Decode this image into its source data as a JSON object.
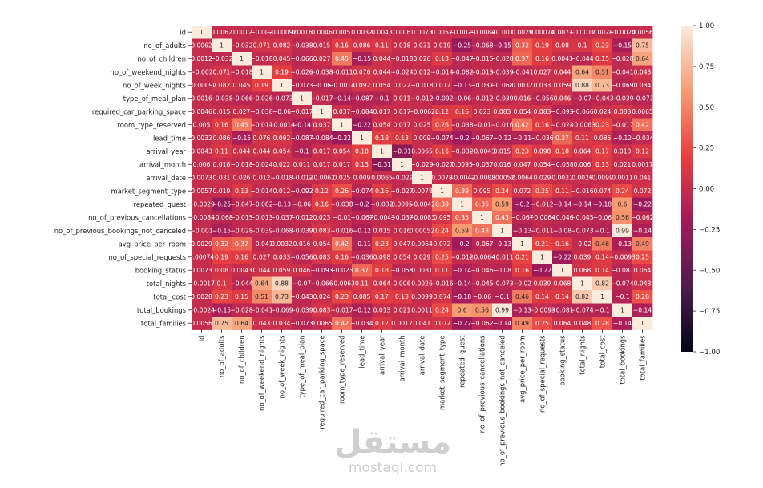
{
  "chart_data": {
    "type": "heatmap",
    "labels": [
      "id",
      "no_of_adults",
      "no_of_children",
      "no_of_weekend_nights",
      "no_of_week_nights",
      "type_of_meal_plan",
      "required_car_parking_space",
      "room_type_reserved",
      "lead_time",
      "arrival_year",
      "arrival_month",
      "arrival_date",
      "market_segment_type",
      "repeated_guest",
      "no_of_previous_cancellations",
      "no_of_previous_bookings_not_canceled",
      "avg_price_per_room",
      "no_of_special_requests",
      "booking_status",
      "total_nights",
      "total_cost",
      "total_bookings",
      "total_families"
    ],
    "values": [
      [
        1,
        0.0062,
        0.0012,
        -0.002,
        -0.00097,
        0.0016,
        0.0046,
        0.005,
        0.0032,
        0.0043,
        0.006,
        0.0073,
        0.0057,
        -0.0029,
        -0.0084,
        -0.001,
        0.0029,
        0.00074,
        0.0073,
        -0.0017,
        0.0028,
        -0.0024,
        0.0056
      ],
      [
        0.0062,
        1,
        -0.032,
        0.071,
        0.082,
        -0.038,
        0.015,
        0.16,
        0.086,
        0.11,
        0.018,
        0.031,
        0.019,
        -0.25,
        -0.068,
        -0.15,
        0.32,
        0.19,
        0.08,
        0.1,
        0.23,
        -0.15,
        0.75
      ],
      [
        0.0012,
        -0.032,
        1,
        -0.018,
        0.045,
        -0.066,
        0.027,
        0.45,
        -0.15,
        0.044,
        -0.018,
        0.026,
        0.13,
        -0.047,
        -0.015,
        -0.028,
        0.37,
        0.16,
        0.0043,
        -0.044,
        0.15,
        -0.028,
        0.64
      ],
      [
        -0.002,
        0.071,
        -0.018,
        1,
        0.19,
        -0.026,
        -0.038,
        -0.011,
        0.076,
        0.044,
        -0.024,
        0.012,
        -0.014,
        -0.082,
        -0.013,
        -0.039,
        -0.041,
        0.027,
        0.044,
        0.64,
        0.51,
        -0.041,
        0.043
      ],
      [
        -0.00097,
        0.082,
        0.045,
        0.19,
        1,
        -0.073,
        -0.06,
        -0.0014,
        0.092,
        0.054,
        0.022,
        -0.018,
        0.012,
        -0.13,
        -0.037,
        -0.068,
        0.0032,
        0.033,
        0.059,
        0.88,
        0.73,
        -0.069,
        0.034
      ],
      [
        0.0016,
        -0.038,
        -0.066,
        -0.026,
        -0.073,
        1,
        -0.017,
        -0.14,
        -0.087,
        -0.1,
        0.011,
        -0.012,
        -0.092,
        -0.06,
        -0.012,
        -0.039,
        0.016,
        -0.056,
        0.046,
        -0.07,
        -0.043,
        -0.039,
        -0.073
      ],
      [
        0.0046,
        0.015,
        0.027,
        -0.038,
        -0.06,
        -0.017,
        1,
        0.037,
        -0.084,
        0.017,
        0.017,
        -0.0062,
        0.12,
        0.16,
        0.023,
        0.083,
        0.054,
        0.083,
        -0.093,
        -0.066,
        0.024,
        0.083,
        0.0065
      ],
      [
        0.005,
        0.16,
        0.45,
        -0.011,
        -0.0014,
        -0.14,
        0.037,
        1,
        -0.22,
        0.054,
        0.017,
        0.025,
        0.26,
        -0.038,
        -0.01,
        -0.016,
        0.42,
        0.16,
        -0.023,
        -0.0063,
        0.23,
        -0.017,
        0.42
      ],
      [
        0.0032,
        0.086,
        -0.15,
        0.076,
        0.092,
        -0.087,
        -0.084,
        -0.22,
        1,
        0.18,
        0.13,
        0.009,
        -0.074,
        -0.2,
        -0.067,
        -0.12,
        -0.11,
        -0.036,
        0.37,
        0.11,
        0.085,
        -0.12,
        -0.034
      ],
      [
        0.0043,
        0.11,
        0.044,
        0.044,
        0.054,
        -0.1,
        0.017,
        0.054,
        0.18,
        1,
        -0.31,
        0.0065,
        0.16,
        -0.032,
        -0.0043,
        0.015,
        0.23,
        0.098,
        0.18,
        0.064,
        0.17,
        0.013,
        0.12
      ],
      [
        0.006,
        0.018,
        -0.018,
        -0.024,
        0.022,
        0.011,
        0.017,
        0.017,
        0.13,
        -0.31,
        1,
        -0.029,
        -0.027,
        0.0095,
        -0.037,
        0.016,
        0.047,
        0.054,
        -0.058,
        0.006,
        0.13,
        0.021,
        0.0017
      ],
      [
        0.0073,
        0.031,
        0.026,
        0.012,
        -0.018,
        -0.012,
        -0.0062,
        0.025,
        0.009,
        0.0065,
        -0.029,
        1,
        0.0078,
        -0.0042,
        -0.0083,
        0.00052,
        0.0064,
        0.029,
        0.0031,
        0.0026,
        0.0099,
        0.0011,
        0.041
      ],
      [
        0.0057,
        0.019,
        0.13,
        -0.014,
        0.012,
        -0.092,
        0.12,
        0.26,
        -0.074,
        0.16,
        -0.027,
        0.0078,
        1,
        0.39,
        0.095,
        0.24,
        0.072,
        0.25,
        0.11,
        -0.016,
        0.074,
        0.24,
        0.072
      ],
      [
        -0.0029,
        -0.25,
        -0.047,
        -0.082,
        -0.13,
        -0.06,
        0.16,
        -0.038,
        -0.2,
        -0.032,
        0.0095,
        -0.0042,
        0.39,
        1,
        0.35,
        0.59,
        -0.2,
        -0.012,
        -0.14,
        -0.14,
        -0.18,
        0.6,
        -0.22
      ],
      [
        -0.0084,
        -0.068,
        -0.015,
        -0.013,
        -0.037,
        -0.012,
        0.023,
        -0.01,
        -0.067,
        -0.0043,
        -0.037,
        -0.0083,
        0.095,
        0.35,
        1,
        0.43,
        -0.067,
        -0.0064,
        -0.046,
        -0.045,
        -0.06,
        0.56,
        -0.062
      ],
      [
        -0.001,
        -0.15,
        -0.028,
        -0.039,
        -0.068,
        -0.039,
        0.083,
        -0.016,
        -0.12,
        0.015,
        0.016,
        0.00052,
        0.24,
        0.59,
        0.43,
        1,
        -0.13,
        -0.011,
        -0.08,
        -0.073,
        -0.1,
        0.99,
        -0.14
      ],
      [
        0.0029,
        0.32,
        0.37,
        -0.041,
        0.0032,
        0.016,
        0.054,
        0.42,
        -0.11,
        0.23,
        0.047,
        0.0064,
        0.072,
        -0.2,
        -0.067,
        -0.13,
        1,
        0.21,
        0.16,
        -0.02,
        0.46,
        -0.13,
        0.49
      ],
      [
        0.00074,
        0.19,
        0.16,
        0.027,
        0.033,
        -0.056,
        0.083,
        0.16,
        -0.036,
        0.098,
        0.054,
        0.029,
        0.25,
        -0.012,
        -0.0064,
        -0.011,
        0.21,
        1,
        -0.22,
        0.039,
        0.14,
        -0.0093,
        0.25
      ],
      [
        0.0073,
        0.08,
        0.0043,
        0.044,
        0.059,
        0.046,
        -0.093,
        -0.023,
        0.37,
        0.18,
        -0.058,
        0.0031,
        0.11,
        -0.14,
        -0.046,
        -0.08,
        0.16,
        -0.22,
        1,
        0.068,
        0.14,
        -0.081,
        0.064
      ],
      [
        -0.0017,
        0.1,
        -0.044,
        0.64,
        0.88,
        -0.07,
        -0.066,
        -0.0063,
        0.11,
        0.064,
        0.006,
        0.0026,
        -0.016,
        -0.14,
        -0.045,
        -0.073,
        -0.02,
        0.039,
        0.068,
        1,
        0.82,
        -0.074,
        0.048
      ],
      [
        0.0028,
        0.23,
        0.15,
        0.51,
        0.73,
        -0.043,
        0.024,
        0.23,
        0.085,
        0.17,
        0.13,
        0.0099,
        0.074,
        -0.18,
        -0.06,
        -0.1,
        0.46,
        0.14,
        0.14,
        0.82,
        1,
        -0.1,
        0.28
      ],
      [
        -0.0024,
        -0.15,
        -0.028,
        -0.041,
        -0.069,
        -0.039,
        0.083,
        -0.017,
        -0.12,
        0.013,
        0.021,
        0.0011,
        0.24,
        0.6,
        0.56,
        0.99,
        -0.13,
        -0.0093,
        -0.081,
        -0.074,
        -0.1,
        1,
        -0.14
      ],
      [
        0.0056,
        0.75,
        0.64,
        0.043,
        0.034,
        -0.073,
        0.0065,
        0.42,
        -0.034,
        0.12,
        0.0017,
        0.041,
        0.072,
        -0.22,
        -0.062,
        -0.14,
        0.49,
        0.25,
        0.064,
        0.048,
        0.28,
        -0.14,
        1
      ]
    ],
    "vmin": -1,
    "vmax": 1,
    "colorbar_ticks": [
      "1.00",
      "0.75",
      "0.50",
      "0.25",
      "0.00",
      "−0.25",
      "−0.50",
      "−0.75",
      "−1.00"
    ],
    "colormap": "rocket",
    "colormap_stops": [
      "#03051a",
      "#4c1d4b",
      "#a11a5b",
      "#e83f3f",
      "#f69c73",
      "#faebdd"
    ]
  },
  "watermark": {
    "arabic": "مستقل",
    "latin": "mostaql.com"
  }
}
